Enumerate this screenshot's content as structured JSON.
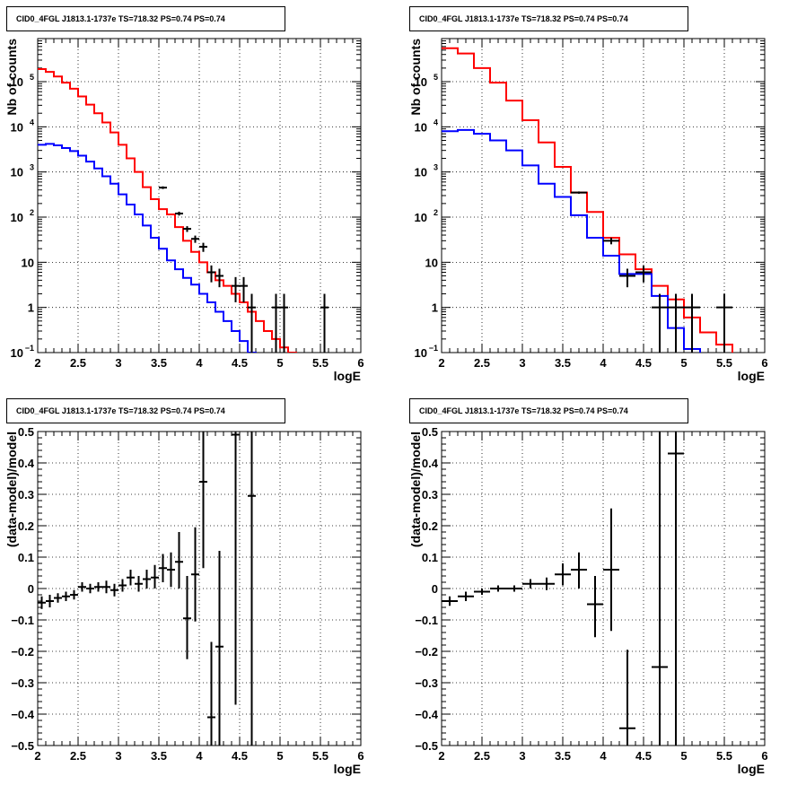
{
  "chart_data": [
    {
      "type": "line",
      "title": "CID0_4FGL J1813.1-1737e TS=718.32 PS=0.74 PS=0.74",
      "xlabel": "logE",
      "ylabel": "Nb of counts",
      "xlim": [
        2,
        6
      ],
      "ylim": [
        0.1,
        900000
      ],
      "yscale": "log",
      "grid": true,
      "x_ticks": [
        "2",
        "2.5",
        "3",
        "3.5",
        "4",
        "4.5",
        "5",
        "5.5",
        "6"
      ],
      "y_ticks": [
        {
          "v": 0.1,
          "m": "10",
          "e": "−1"
        },
        {
          "v": 1,
          "m": "1",
          "e": ""
        },
        {
          "v": 10,
          "m": "10",
          "e": ""
        },
        {
          "v": 100,
          "m": "10",
          "e": "2"
        },
        {
          "v": 1000,
          "m": "10",
          "e": "3"
        },
        {
          "v": 10000,
          "m": "10",
          "e": "4"
        },
        {
          "v": 100000,
          "m": "10",
          "e": "5"
        }
      ],
      "series": [
        {
          "color": "#ff0000",
          "style": "step",
          "bin_width": 0.1,
          "x": [
            2.05,
            2.15,
            2.25,
            2.35,
            2.45,
            2.55,
            2.65,
            2.75,
            2.85,
            2.95,
            3.05,
            3.15,
            3.25,
            3.35,
            3.45,
            3.55,
            3.65,
            3.75,
            3.85,
            3.95,
            4.05,
            4.15,
            4.25,
            4.35,
            4.45,
            4.55,
            4.65,
            4.75,
            4.85,
            4.95,
            5.05,
            5.15,
            5.25,
            5.35,
            5.45,
            5.55,
            5.65,
            5.75,
            5.85,
            5.95
          ],
          "y": [
            190000,
            165000,
            130000,
            95000,
            70000,
            47000,
            31000,
            20000,
            12500,
            7500,
            4000,
            2000,
            1000,
            460,
            250,
            150,
            115,
            60,
            30,
            17,
            10,
            6,
            4,
            3,
            2,
            1.3,
            0.8,
            0.5,
            0.3,
            0.2,
            0.13,
            0.1,
            0.05,
            0.05,
            0.05,
            0.05,
            0.05,
            0.05,
            0.05,
            0.05
          ]
        },
        {
          "color": "#0000ff",
          "style": "step",
          "bin_width": 0.1,
          "x": [
            2.05,
            2.15,
            2.25,
            2.35,
            2.45,
            2.55,
            2.65,
            2.75,
            2.85,
            2.95,
            3.05,
            3.15,
            3.25,
            3.35,
            3.45,
            3.55,
            3.65,
            3.75,
            3.85,
            3.95,
            4.05,
            4.15,
            4.25,
            4.35,
            4.45,
            4.55,
            4.65,
            4.75,
            4.85,
            4.95,
            5.05,
            5.15,
            5.25,
            5.35,
            5.45,
            5.55,
            5.65,
            5.75,
            5.85,
            5.95
          ],
          "y": [
            4000,
            4200,
            3900,
            3400,
            2900,
            2300,
            1700,
            1200,
            800,
            550,
            320,
            190,
            115,
            65,
            35,
            20,
            11,
            7,
            4.5,
            3.2,
            2,
            1.3,
            0.8,
            0.5,
            0.3,
            0.18,
            0.1,
            0.08,
            0.08,
            0.08,
            0.08,
            0.08,
            0.08,
            0.08,
            0.08,
            0.08,
            0.08,
            0.08,
            0.08,
            0.08
          ]
        },
        {
          "color": "#000000",
          "style": "errorbar",
          "points": [
            {
              "x": 3.55,
              "y": 450,
              "xe": 0.05,
              "lo": 420,
              "hi": 480
            },
            {
              "x": 3.75,
              "y": 120,
              "xe": 0.05,
              "lo": 108,
              "hi": 132
            },
            {
              "x": 3.85,
              "y": 55,
              "xe": 0.05,
              "lo": 47,
              "hi": 63
            },
            {
              "x": 3.95,
              "y": 33,
              "xe": 0.05,
              "lo": 27,
              "hi": 39
            },
            {
              "x": 4.05,
              "y": 22,
              "xe": 0.05,
              "lo": 17,
              "hi": 27
            },
            {
              "x": 4.15,
              "y": 6,
              "xe": 0.05,
              "lo": 3.6,
              "hi": 8.5
            },
            {
              "x": 4.25,
              "y": 5,
              "xe": 0.05,
              "lo": 2.8,
              "hi": 7.2
            },
            {
              "x": 4.45,
              "y": 3,
              "xe": 0.05,
              "lo": 1.3,
              "hi": 4.7
            },
            {
              "x": 4.55,
              "y": 3,
              "xe": 0.05,
              "lo": 1.3,
              "hi": 4.7
            },
            {
              "x": 4.65,
              "y": 1,
              "xe": 0.05,
              "lo": 0.05,
              "hi": 2
            },
            {
              "x": 4.95,
              "y": 1,
              "xe": 0.05,
              "lo": 0.05,
              "hi": 2
            },
            {
              "x": 5.05,
              "y": 1,
              "xe": 0.05,
              "lo": 0.05,
              "hi": 2
            },
            {
              "x": 5.55,
              "y": 1,
              "xe": 0.05,
              "lo": 0.05,
              "hi": 2
            }
          ]
        }
      ]
    },
    {
      "type": "line",
      "title": "CID0_4FGL J1813.1-1737e TS=718.32 PS=0.74 PS=0.74",
      "xlabel": "logE",
      "ylabel": "Nb of counts",
      "xlim": [
        2,
        6
      ],
      "ylim": [
        0.1,
        900000
      ],
      "yscale": "log",
      "grid": true,
      "x_ticks": [
        "2",
        "2.5",
        "3",
        "3.5",
        "4",
        "4.5",
        "5",
        "5.5",
        "6"
      ],
      "y_ticks": [
        {
          "v": 0.1,
          "m": "10",
          "e": "−1"
        },
        {
          "v": 1,
          "m": "1",
          "e": ""
        },
        {
          "v": 10,
          "m": "10",
          "e": ""
        },
        {
          "v": 100,
          "m": "10",
          "e": "2"
        },
        {
          "v": 1000,
          "m": "10",
          "e": "3"
        },
        {
          "v": 10000,
          "m": "10",
          "e": "4"
        },
        {
          "v": 100000,
          "m": "10",
          "e": "5"
        }
      ],
      "series": [
        {
          "color": "#ff0000",
          "style": "step",
          "bin_width": 0.2,
          "x": [
            2.1,
            2.3,
            2.5,
            2.7,
            2.9,
            3.1,
            3.3,
            3.5,
            3.7,
            3.9,
            4.1,
            4.3,
            4.5,
            4.7,
            4.9,
            5.1,
            5.3,
            5.5,
            5.7,
            5.9
          ],
          "y": [
            550000,
            420000,
            200000,
            95000,
            38000,
            14000,
            4500,
            1300,
            350,
            130,
            35,
            15,
            7,
            3,
            1.5,
            0.6,
            0.28,
            0.15,
            0.05,
            0.05
          ]
        },
        {
          "color": "#0000ff",
          "style": "step",
          "bin_width": 0.2,
          "x": [
            2.1,
            2.3,
            2.5,
            2.7,
            2.9,
            3.1,
            3.3,
            3.5,
            3.7,
            3.9,
            4.1,
            4.3,
            4.5,
            4.7,
            4.9,
            5.1,
            5.3,
            5.5,
            5.7,
            5.9
          ],
          "y": [
            8000,
            8500,
            7000,
            5000,
            3000,
            1400,
            550,
            280,
            110,
            35,
            14,
            5.5,
            5.5,
            1.8,
            0.35,
            0.12,
            0.08,
            0.08,
            0.08,
            0.08
          ]
        },
        {
          "color": "#000000",
          "style": "errorbar",
          "points": [
            {
              "x": 3.7,
              "y": 350,
              "xe": 0.1,
              "lo": 330,
              "hi": 370
            },
            {
              "x": 4.1,
              "y": 30,
              "xe": 0.1,
              "lo": 25,
              "hi": 35
            },
            {
              "x": 4.3,
              "y": 5,
              "xe": 0.1,
              "lo": 2.8,
              "hi": 7.2
            },
            {
              "x": 4.5,
              "y": 6,
              "xe": 0.1,
              "lo": 3.6,
              "hi": 8.4
            },
            {
              "x": 4.7,
              "y": 1,
              "xe": 0.1,
              "lo": 0.05,
              "hi": 2
            },
            {
              "x": 4.9,
              "y": 1,
              "xe": 0.1,
              "lo": 0.05,
              "hi": 2
            },
            {
              "x": 5.1,
              "y": 1,
              "xe": 0.1,
              "lo": 0.05,
              "hi": 2
            },
            {
              "x": 5.5,
              "y": 1,
              "xe": 0.1,
              "lo": 0.05,
              "hi": 2
            }
          ]
        }
      ]
    },
    {
      "type": "scatter",
      "title": "CID0_4FGL J1813.1-1737e TS=718.32 PS=0.74 PS=0.74",
      "xlabel": "logE",
      "ylabel": "(data-model)/model",
      "xlim": [
        2,
        6
      ],
      "ylim": [
        -0.5,
        0.5
      ],
      "yscale": "linear",
      "grid": true,
      "x_ticks": [
        "2",
        "2.5",
        "3",
        "3.5",
        "4",
        "4.5",
        "5",
        "5.5",
        "6"
      ],
      "y_ticks": [
        "−0.5",
        "−0.4",
        "−0.3",
        "−0.2",
        "−0.1",
        "0",
        "0.1",
        "0.2",
        "0.3",
        "0.4",
        "0.5"
      ],
      "series": [
        {
          "color": "#000000",
          "style": "errorbar",
          "points": [
            {
              "x": 2.05,
              "y": -0.045,
              "xe": 0.05,
              "lo": -0.065,
              "hi": -0.025
            },
            {
              "x": 2.15,
              "y": -0.04,
              "xe": 0.05,
              "lo": -0.06,
              "hi": -0.02
            },
            {
              "x": 2.25,
              "y": -0.03,
              "xe": 0.05,
              "lo": -0.045,
              "hi": -0.015
            },
            {
              "x": 2.35,
              "y": -0.025,
              "xe": 0.05,
              "lo": -0.04,
              "hi": -0.01
            },
            {
              "x": 2.45,
              "y": -0.02,
              "xe": 0.05,
              "lo": -0.035,
              "hi": -0.005
            },
            {
              "x": 2.55,
              "y": 0.005,
              "xe": 0.05,
              "lo": -0.01,
              "hi": 0.02
            },
            {
              "x": 2.65,
              "y": 0.0,
              "xe": 0.05,
              "lo": -0.015,
              "hi": 0.015
            },
            {
              "x": 2.75,
              "y": 0.005,
              "xe": 0.05,
              "lo": -0.01,
              "hi": 0.02
            },
            {
              "x": 2.85,
              "y": 0.005,
              "xe": 0.05,
              "lo": -0.015,
              "hi": 0.025
            },
            {
              "x": 2.95,
              "y": -0.005,
              "xe": 0.05,
              "lo": -0.025,
              "hi": 0.015
            },
            {
              "x": 3.05,
              "y": 0.01,
              "xe": 0.05,
              "lo": -0.01,
              "hi": 0.03
            },
            {
              "x": 3.15,
              "y": 0.035,
              "xe": 0.05,
              "lo": 0.01,
              "hi": 0.06
            },
            {
              "x": 3.25,
              "y": 0.015,
              "xe": 0.05,
              "lo": -0.01,
              "hi": 0.04
            },
            {
              "x": 3.35,
              "y": 0.03,
              "xe": 0.05,
              "lo": 0.0,
              "hi": 0.06
            },
            {
              "x": 3.45,
              "y": 0.035,
              "xe": 0.05,
              "lo": 0.0,
              "hi": 0.075
            },
            {
              "x": 3.55,
              "y": 0.065,
              "xe": 0.05,
              "lo": 0.02,
              "hi": 0.11
            },
            {
              "x": 3.65,
              "y": 0.06,
              "xe": 0.05,
              "lo": 0.005,
              "hi": 0.115
            },
            {
              "x": 3.75,
              "y": 0.085,
              "xe": 0.05,
              "lo": 0.0,
              "hi": 0.18
            },
            {
              "x": 3.85,
              "y": -0.095,
              "xe": 0.05,
              "lo": -0.225,
              "hi": 0.04
            },
            {
              "x": 3.95,
              "y": 0.045,
              "xe": 0.05,
              "lo": -0.105,
              "hi": 0.195
            },
            {
              "x": 4.05,
              "y": 0.34,
              "xe": 0.05,
              "lo": 0.065,
              "hi": 0.5
            },
            {
              "x": 4.15,
              "y": -0.41,
              "xe": 0.05,
              "lo": -0.5,
              "hi": -0.17
            },
            {
              "x": 4.25,
              "y": -0.185,
              "xe": 0.05,
              "lo": -0.5,
              "hi": 0.12
            },
            {
              "x": 4.45,
              "y": 0.49,
              "xe": 0.05,
              "lo": -0.37,
              "hi": 0.5
            },
            {
              "x": 4.65,
              "y": 0.295,
              "xe": 0.05,
              "lo": -0.5,
              "hi": 0.5
            }
          ]
        }
      ]
    },
    {
      "type": "scatter",
      "title": "CID0_4FGL J1813.1-1737e TS=718.32 PS=0.74 PS=0.74",
      "xlabel": "logE",
      "ylabel": "(data-model)/model",
      "xlim": [
        2,
        6
      ],
      "ylim": [
        -0.5,
        0.5
      ],
      "yscale": "linear",
      "grid": true,
      "x_ticks": [
        "2",
        "2.5",
        "3",
        "3.5",
        "4",
        "4.5",
        "5",
        "5.5",
        "6"
      ],
      "y_ticks": [
        "−0.5",
        "−0.4",
        "−0.3",
        "−0.2",
        "−0.1",
        "0",
        "0.1",
        "0.2",
        "0.3",
        "0.4",
        "0.5"
      ],
      "series": [
        {
          "color": "#000000",
          "style": "errorbar",
          "points": [
            {
              "x": 2.1,
              "y": -0.04,
              "xe": 0.1,
              "lo": -0.055,
              "hi": -0.025
            },
            {
              "x": 2.3,
              "y": -0.025,
              "xe": 0.1,
              "lo": -0.04,
              "hi": -0.01
            },
            {
              "x": 2.5,
              "y": -0.01,
              "xe": 0.1,
              "lo": -0.02,
              "hi": 0.0
            },
            {
              "x": 2.7,
              "y": 0.0,
              "xe": 0.1,
              "lo": -0.01,
              "hi": 0.01
            },
            {
              "x": 2.9,
              "y": 0.0,
              "xe": 0.1,
              "lo": -0.01,
              "hi": 0.01
            },
            {
              "x": 3.1,
              "y": 0.015,
              "xe": 0.1,
              "lo": 0.0,
              "hi": 0.03
            },
            {
              "x": 3.3,
              "y": 0.015,
              "xe": 0.1,
              "lo": -0.005,
              "hi": 0.035
            },
            {
              "x": 3.5,
              "y": 0.045,
              "xe": 0.1,
              "lo": 0.01,
              "hi": 0.08
            },
            {
              "x": 3.7,
              "y": 0.06,
              "xe": 0.1,
              "lo": 0.0,
              "hi": 0.115
            },
            {
              "x": 3.9,
              "y": -0.05,
              "xe": 0.1,
              "lo": -0.155,
              "hi": 0.04
            },
            {
              "x": 4.1,
              "y": 0.06,
              "xe": 0.1,
              "lo": -0.135,
              "hi": 0.255
            },
            {
              "x": 4.3,
              "y": -0.445,
              "xe": 0.1,
              "lo": -0.5,
              "hi": -0.195
            },
            {
              "x": 4.7,
              "y": -0.25,
              "xe": 0.1,
              "lo": -0.5,
              "hi": 0.5
            },
            {
              "x": 4.9,
              "y": 0.43,
              "xe": 0.1,
              "lo": -0.5,
              "hi": 0.5
            }
          ]
        }
      ]
    }
  ]
}
